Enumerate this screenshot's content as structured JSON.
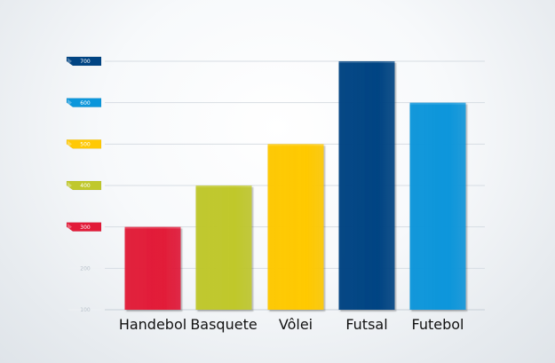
{
  "chart_data": {
    "type": "bar",
    "categories": [
      "Handebol",
      "Basquete",
      "Vôlei",
      "Futsal",
      "Futebol"
    ],
    "values": [
      300,
      400,
      500,
      700,
      600
    ],
    "title": "",
    "xlabel": "",
    "ylabel": "",
    "ylim": [
      100,
      700
    ],
    "yticks": [
      100,
      200,
      300,
      400,
      500,
      600,
      700
    ],
    "grid": true,
    "bar_colors": [
      "#e21a38",
      "#c0c82c",
      "#ffc905",
      "#014483",
      "#0b96db"
    ],
    "tick_label_colors": {
      "100": "#eef1f4",
      "200": "#eef1f4",
      "300": "#e21a38",
      "400": "#c0c82c",
      "500": "#ffc905",
      "600": "#0b96db",
      "700": "#014483"
    }
  }
}
